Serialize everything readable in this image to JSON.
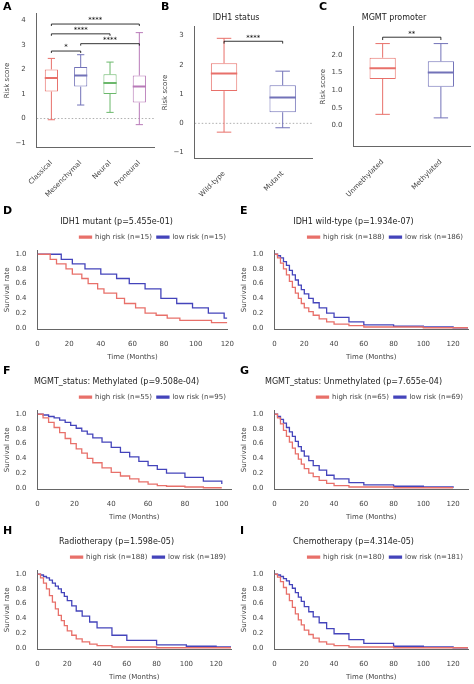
{
  "chart_data": [
    {
      "type": "box",
      "panel": "A",
      "ylabel": "Risk score",
      "categories": [
        "Classical",
        "Mesenchymal",
        "Neural",
        "Proneural"
      ],
      "colors": [
        "#E8706A",
        "#7272B8",
        "#6BB86B",
        "#B87AB8"
      ],
      "median": [
        1.65,
        1.75,
        1.45,
        1.3
      ],
      "q1": [
        1.1,
        1.3,
        1.0,
        0.65
      ],
      "q3": [
        2.0,
        2.1,
        1.8,
        1.75
      ],
      "whisker_low": [
        -0.05,
        0.55,
        0.25,
        -0.25
      ],
      "whisker_high": [
        2.45,
        2.6,
        2.3,
        3.5
      ],
      "ylim": [
        -1.2,
        4.3
      ],
      "yticks": [
        {
          "value": -1,
          "label": "−1"
        },
        0,
        1,
        2,
        3,
        4
      ],
      "grid": false,
      "annotations": [
        {
          "type": "bracket",
          "pair": [
            0,
            3
          ],
          "y": 3.85,
          "text": "****"
        },
        {
          "type": "bracket",
          "pair": [
            0,
            2
          ],
          "y": 3.45,
          "text": "****"
        },
        {
          "type": "bracket",
          "pair": [
            1,
            3
          ],
          "y": 3.05,
          "text": "****"
        },
        {
          "type": "bracket",
          "pair": [
            0,
            1
          ],
          "y": 2.75,
          "text": "*"
        },
        {
          "type": "hline",
          "y": 0
        }
      ]
    },
    {
      "type": "box",
      "panel": "B",
      "title": "IDH1 status",
      "ylabel": "Risk score",
      "categories": [
        "Wild-type",
        "Mutant"
      ],
      "colors": [
        "#E8706A",
        "#7272B8"
      ],
      "median": [
        1.7,
        0.88
      ],
      "q1": [
        1.1,
        0.38
      ],
      "q3": [
        2.05,
        1.3
      ],
      "whisker_low": [
        -0.3,
        -0.15
      ],
      "whisker_high": [
        2.9,
        1.78
      ],
      "ylim": [
        -1.2,
        3.3
      ],
      "yticks": [
        {
          "value": -1,
          "label": "−1"
        },
        0,
        1,
        2,
        3
      ],
      "grid": false,
      "annotations": [
        {
          "type": "bracket",
          "pair": [
            0,
            1
          ],
          "y": 2.8,
          "text": "****"
        },
        {
          "type": "hline",
          "y": 0
        }
      ]
    },
    {
      "type": "box",
      "panel": "C",
      "title": "MGMT promoter",
      "ylabel": "Risk score",
      "categories": [
        "Unmethylated",
        "Methylated"
      ],
      "colors": [
        "#E8706A",
        "#7272B8"
      ],
      "median": [
        1.62,
        1.5
      ],
      "q1": [
        1.32,
        1.1
      ],
      "q3": [
        1.92,
        1.82
      ],
      "whisker_low": [
        0.32,
        0.22
      ],
      "whisker_high": [
        2.32,
        2.32
      ],
      "ylim": [
        -0.6,
        2.8
      ],
      "yticks": [
        {
          "value": 0,
          "label": "0.0"
        },
        0.5,
        {
          "value": 1,
          "label": "1.0"
        },
        1.5,
        {
          "value": 2,
          "label": "2.0"
        }
      ],
      "grid": false,
      "annotations": [
        {
          "type": "bracket",
          "pair": [
            0,
            1
          ],
          "y": 2.5,
          "text": "**"
        }
      ]
    },
    {
      "type": "step",
      "panel": "D",
      "title": "IDH1 mutant (p=5.455e-01)",
      "xlabel": "Time (Months)",
      "ylabel": "Survival rate",
      "xlim": [
        0,
        120
      ],
      "ylim": [
        -0.02,
        1.05
      ],
      "xticks": [
        0,
        20,
        40,
        60,
        80,
        100,
        120
      ],
      "yticks": [
        {
          "value": 0,
          "label": "0.0"
        },
        0.2,
        0.4,
        0.6,
        0.8,
        {
          "value": 1,
          "label": "1.0"
        }
      ],
      "grid": false,
      "legend": "upper right",
      "series": [
        {
          "name": "high risk (n=15)",
          "color": "#E8706A",
          "x": [
            0,
            8,
            12,
            18,
            22,
            28,
            32,
            38,
            42,
            50,
            55,
            62,
            68,
            75,
            82,
            90,
            100,
            110,
            120
          ],
          "values": [
            1.0,
            0.93,
            0.87,
            0.8,
            0.73,
            0.67,
            0.6,
            0.53,
            0.47,
            0.4,
            0.33,
            0.27,
            0.2,
            0.17,
            0.13,
            0.1,
            0.1,
            0.07,
            0.07
          ]
        },
        {
          "name": "low risk (n=15)",
          "color": "#4444BB",
          "x": [
            0,
            8,
            15,
            22,
            30,
            40,
            50,
            58,
            68,
            78,
            88,
            98,
            108,
            118,
            120
          ],
          "values": [
            1.0,
            1.0,
            0.93,
            0.87,
            0.8,
            0.73,
            0.67,
            0.6,
            0.53,
            0.4,
            0.33,
            0.27,
            0.2,
            0.13,
            0.13
          ]
        }
      ]
    },
    {
      "type": "step",
      "panel": "E",
      "title": "IDH1 wild-type (p=1.934e-07)",
      "xlabel": "Time (Months)",
      "ylabel": "Survival rate",
      "xlim": [
        0,
        130
      ],
      "ylim": [
        -0.02,
        1.05
      ],
      "xticks": [
        0,
        20,
        40,
        60,
        80,
        100,
        120
      ],
      "yticks": [
        {
          "value": 0,
          "label": "0.0"
        },
        0.2,
        0.4,
        0.6,
        0.8,
        {
          "value": 1,
          "label": "1.0"
        }
      ],
      "grid": false,
      "legend": "upper right",
      "series": [
        {
          "name": "high risk (n=188)",
          "color": "#E8706A",
          "x": [
            0,
            2,
            4,
            6,
            8,
            10,
            12,
            14,
            16,
            18,
            20,
            23,
            26,
            30,
            35,
            40,
            50,
            60,
            80,
            100,
            120,
            130
          ],
          "values": [
            1.0,
            0.95,
            0.88,
            0.8,
            0.72,
            0.63,
            0.55,
            0.47,
            0.4,
            0.33,
            0.27,
            0.22,
            0.17,
            0.12,
            0.08,
            0.05,
            0.03,
            0.01,
            0.01,
            0.0,
            0.0,
            0.0
          ]
        },
        {
          "name": "low risk (n=186)",
          "color": "#4444BB",
          "x": [
            0,
            2,
            4,
            6,
            8,
            10,
            12,
            14,
            16,
            18,
            20,
            23,
            26,
            30,
            35,
            40,
            50,
            60,
            80,
            100,
            120,
            130
          ],
          "values": [
            1.0,
            0.98,
            0.95,
            0.9,
            0.85,
            0.78,
            0.72,
            0.65,
            0.58,
            0.52,
            0.46,
            0.4,
            0.34,
            0.27,
            0.2,
            0.14,
            0.08,
            0.04,
            0.02,
            0.01,
            0.0,
            0.0
          ]
        }
      ]
    },
    {
      "type": "step",
      "panel": "F",
      "title": "MGMT_status: Methylated (p=9.508e-04)",
      "xlabel": "Time (Months)",
      "ylabel": "Survival rate",
      "xlim": [
        0,
        105
      ],
      "ylim": [
        -0.02,
        1.05
      ],
      "xticks": [
        0,
        20,
        40,
        60,
        80,
        100
      ],
      "yticks": [
        {
          "value": 0,
          "label": "0.0"
        },
        0.2,
        0.4,
        0.6,
        0.8,
        {
          "value": 1,
          "label": "1.0"
        }
      ],
      "grid": false,
      "legend": "upper right",
      "series": [
        {
          "name": "high risk (n=55)",
          "color": "#E8706A",
          "x": [
            0,
            3,
            6,
            9,
            12,
            15,
            18,
            21,
            24,
            27,
            30,
            35,
            40,
            45,
            50,
            55,
            60,
            65,
            70,
            80,
            90,
            100
          ],
          "values": [
            1.0,
            0.95,
            0.89,
            0.82,
            0.75,
            0.67,
            0.6,
            0.53,
            0.47,
            0.4,
            0.34,
            0.27,
            0.21,
            0.16,
            0.12,
            0.08,
            0.05,
            0.03,
            0.02,
            0.01,
            0.0,
            0.0
          ]
        },
        {
          "name": "low risk (n=95)",
          "color": "#4444BB",
          "x": [
            0,
            3,
            6,
            9,
            12,
            15,
            18,
            21,
            24,
            27,
            30,
            35,
            40,
            45,
            50,
            55,
            60,
            65,
            70,
            80,
            90,
            100
          ],
          "values": [
            1.0,
            0.99,
            0.97,
            0.95,
            0.92,
            0.89,
            0.85,
            0.81,
            0.77,
            0.73,
            0.68,
            0.62,
            0.55,
            0.48,
            0.42,
            0.36,
            0.3,
            0.25,
            0.2,
            0.14,
            0.09,
            0.05
          ]
        }
      ]
    },
    {
      "type": "step",
      "panel": "G",
      "title": "MGMT_status: Unmethylated (p=7.655e-04)",
      "xlabel": "Time (Months)",
      "ylabel": "Survival rate",
      "xlim": [
        0,
        130
      ],
      "ylim": [
        -0.02,
        1.05
      ],
      "xticks": [
        0,
        20,
        40,
        60,
        80,
        100,
        120
      ],
      "yticks": [
        {
          "value": 0,
          "label": "0.0"
        },
        0.2,
        0.4,
        0.6,
        0.8,
        {
          "value": 1,
          "label": "1.0"
        }
      ],
      "grid": false,
      "legend": "upper right",
      "series": [
        {
          "name": "high risk (n=65)",
          "color": "#E8706A",
          "x": [
            0,
            2,
            4,
            6,
            8,
            10,
            12,
            14,
            16,
            18,
            20,
            23,
            26,
            30,
            35,
            40,
            50,
            60,
            80,
            100,
            120
          ],
          "values": [
            1.0,
            0.95,
            0.87,
            0.78,
            0.7,
            0.62,
            0.54,
            0.46,
            0.39,
            0.32,
            0.26,
            0.2,
            0.15,
            0.1,
            0.06,
            0.03,
            0.01,
            0.01,
            0.0,
            0.0,
            0.0
          ]
        },
        {
          "name": "low risk (n=69)",
          "color": "#4444BB",
          "x": [
            0,
            2,
            4,
            6,
            8,
            10,
            12,
            14,
            16,
            18,
            20,
            23,
            26,
            30,
            35,
            40,
            50,
            60,
            80,
            100,
            120
          ],
          "values": [
            1.0,
            0.97,
            0.93,
            0.88,
            0.82,
            0.76,
            0.7,
            0.63,
            0.56,
            0.5,
            0.43,
            0.37,
            0.3,
            0.24,
            0.17,
            0.12,
            0.07,
            0.04,
            0.02,
            0.01,
            0.0
          ]
        }
      ]
    },
    {
      "type": "step",
      "panel": "H",
      "title": "Radiotherapy (p=1.598e-05)",
      "xlabel": "Time (Months)",
      "ylabel": "Survival rate",
      "xlim": [
        0,
        130
      ],
      "ylim": [
        -0.02,
        1.05
      ],
      "xticks": [
        0,
        20,
        40,
        60,
        80,
        100,
        120
      ],
      "yticks": [
        {
          "value": 0,
          "label": "0.0"
        },
        0.2,
        0.4,
        0.6,
        0.8,
        {
          "value": 1,
          "label": "1.0"
        }
      ],
      "grid": false,
      "legend": "upper right",
      "series": [
        {
          "name": "high risk (n=188)",
          "color": "#E8706A",
          "x": [
            0,
            2,
            4,
            6,
            8,
            10,
            12,
            14,
            16,
            18,
            20,
            23,
            26,
            30,
            35,
            40,
            50,
            60,
            80,
            100,
            120,
            130
          ],
          "values": [
            1.0,
            0.95,
            0.88,
            0.8,
            0.71,
            0.62,
            0.53,
            0.44,
            0.37,
            0.3,
            0.23,
            0.17,
            0.12,
            0.08,
            0.05,
            0.03,
            0.01,
            0.01,
            0.0,
            0.0,
            0.0,
            0.0
          ]
        },
        {
          "name": "low risk (n=189)",
          "color": "#4444BB",
          "x": [
            0,
            2,
            4,
            6,
            8,
            10,
            12,
            14,
            16,
            18,
            20,
            23,
            26,
            30,
            35,
            40,
            50,
            60,
            80,
            100,
            120,
            130
          ],
          "values": [
            1.0,
            0.99,
            0.97,
            0.95,
            0.92,
            0.88,
            0.84,
            0.8,
            0.75,
            0.7,
            0.64,
            0.57,
            0.5,
            0.43,
            0.35,
            0.27,
            0.17,
            0.1,
            0.04,
            0.02,
            0.01,
            0.0
          ]
        }
      ]
    },
    {
      "type": "step",
      "panel": "I",
      "title": "Chemotherapy (p=4.314e-05)",
      "xlabel": "Time (Months)",
      "ylabel": "Survival rate",
      "xlim": [
        0,
        130
      ],
      "ylim": [
        -0.02,
        1.05
      ],
      "xticks": [
        0,
        20,
        40,
        60,
        80,
        100,
        120
      ],
      "yticks": [
        {
          "value": 0,
          "label": "0.0"
        },
        0.2,
        0.4,
        0.6,
        0.8,
        {
          "value": 1,
          "label": "1.0"
        }
      ],
      "grid": false,
      "legend": "upper right",
      "series": [
        {
          "name": "high risk (n=180)",
          "color": "#E8706A",
          "x": [
            0,
            2,
            4,
            6,
            8,
            10,
            12,
            14,
            16,
            18,
            20,
            23,
            26,
            30,
            35,
            40,
            50,
            60,
            80,
            100,
            120,
            130
          ],
          "values": [
            1.0,
            0.96,
            0.9,
            0.82,
            0.73,
            0.64,
            0.55,
            0.46,
            0.38,
            0.31,
            0.24,
            0.18,
            0.13,
            0.08,
            0.05,
            0.03,
            0.01,
            0.01,
            0.0,
            0.0,
            0.0,
            0.0
          ]
        },
        {
          "name": "low risk (n=181)",
          "color": "#4444BB",
          "x": [
            0,
            2,
            4,
            6,
            8,
            10,
            12,
            14,
            16,
            18,
            20,
            23,
            26,
            30,
            35,
            40,
            50,
            60,
            80,
            100,
            120,
            130
          ],
          "values": [
            1.0,
            0.99,
            0.97,
            0.94,
            0.91,
            0.86,
            0.81,
            0.75,
            0.69,
            0.63,
            0.56,
            0.49,
            0.42,
            0.34,
            0.26,
            0.19,
            0.11,
            0.06,
            0.02,
            0.01,
            0.0,
            0.0
          ]
        }
      ]
    }
  ]
}
